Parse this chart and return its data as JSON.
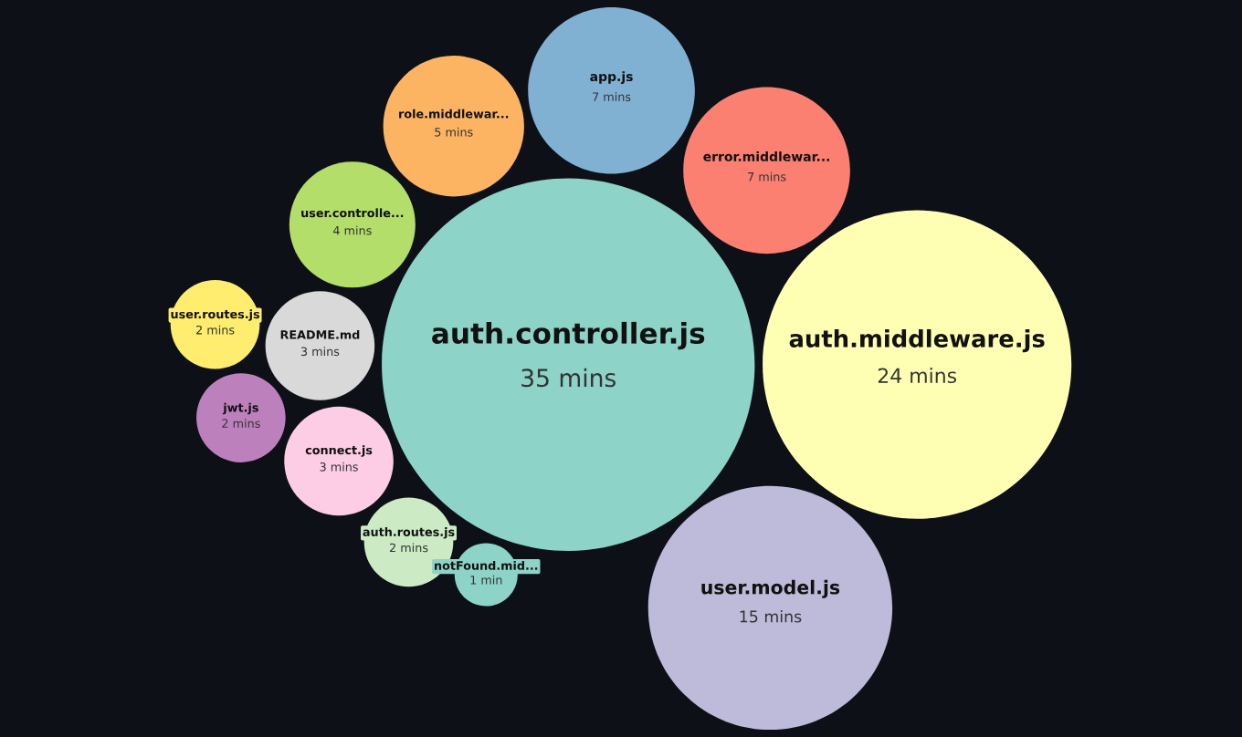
{
  "chart_data": {
    "type": "other",
    "categories": [
      "auth.controller.js",
      "auth.middleware.js",
      "user.model.js",
      "error.middlewar...",
      "app.js",
      "role.middlewar...",
      "user.controlle...",
      "README.md",
      "connect.js",
      "jwt.js",
      "auth.routes.js",
      "user.routes.js",
      "notFound.mid..."
    ],
    "values": [
      35,
      24,
      15,
      7,
      7,
      5,
      4,
      3,
      3,
      2,
      2,
      2,
      1
    ],
    "value_labels": [
      "35 mins",
      "24 mins",
      "15 mins",
      "7 mins",
      "7 mins",
      "5 mins",
      "4 mins",
      "3 mins",
      "3 mins",
      "2 mins",
      "2 mins",
      "2 mins",
      "1 min"
    ],
    "colors": [
      "#8dd3c7",
      "#ffffb3",
      "#bebada",
      "#fb8072",
      "#80b1d3",
      "#fdb462",
      "#b3de69",
      "#d9d9d9",
      "#fccde5",
      "#bc80bd",
      "#ccebc5",
      "#ffed6f",
      "#8dd3c7"
    ],
    "legend": false
  }
}
